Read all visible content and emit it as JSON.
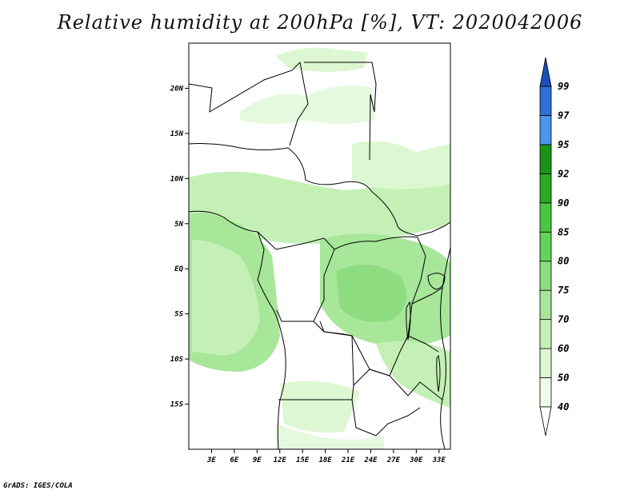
{
  "title": "Relative humidity at 200hPa [%], VT: 2020042006",
  "credit": "GrADS: IGES/COLA",
  "colors": {
    "c40": "#effcea",
    "c50": "#dcf7d2",
    "c60": "#c4f0b6",
    "c70": "#a8e69a",
    "c75": "#8edc80",
    "c80": "#62d45a",
    "c85": "#48c840",
    "c90": "#2aab24",
    "c92": "#1a9416",
    "c95": "#4a96e8",
    "c97": "#2f6fd8",
    "c99": "#1c4fb8"
  },
  "chart_data": {
    "type": "heatmap",
    "title": "Relative humidity at 200hPa [%], VT: 2020042006",
    "variable": "Relative humidity",
    "level": "200hPa",
    "units": "%",
    "valid_time": "2020042006",
    "x_ticks": [
      "3E",
      "6E",
      "9E",
      "12E",
      "15E",
      "18E",
      "21E",
      "24E",
      "27E",
      "30E",
      "33E"
    ],
    "x_tick_values": [
      3,
      6,
      9,
      12,
      15,
      18,
      21,
      24,
      27,
      30,
      33
    ],
    "y_ticks": [
      "20N",
      "15N",
      "10N",
      "5N",
      "EQ",
      "5S",
      "10S",
      "15S"
    ],
    "y_tick_values": [
      20,
      15,
      10,
      5,
      0,
      -5,
      -10,
      -15
    ],
    "lon_range": [
      0,
      34.5
    ],
    "lat_range": [
      -20,
      25
    ],
    "colorbar": {
      "levels": [
        "40",
        "50",
        "60",
        "70",
        "75",
        "80",
        "85",
        "90",
        "92",
        "95",
        "97",
        "99"
      ],
      "colors": [
        "#effcea",
        "#dcf7d2",
        "#c4f0b6",
        "#a8e69a",
        "#8edc80",
        "#62d45a",
        "#48c840",
        "#2aab24",
        "#1a9416",
        "#4a96e8",
        "#2f6fd8",
        "#1c4fb8"
      ],
      "below_color": "#ffffff",
      "above_color": "#1c4fb8"
    }
  }
}
